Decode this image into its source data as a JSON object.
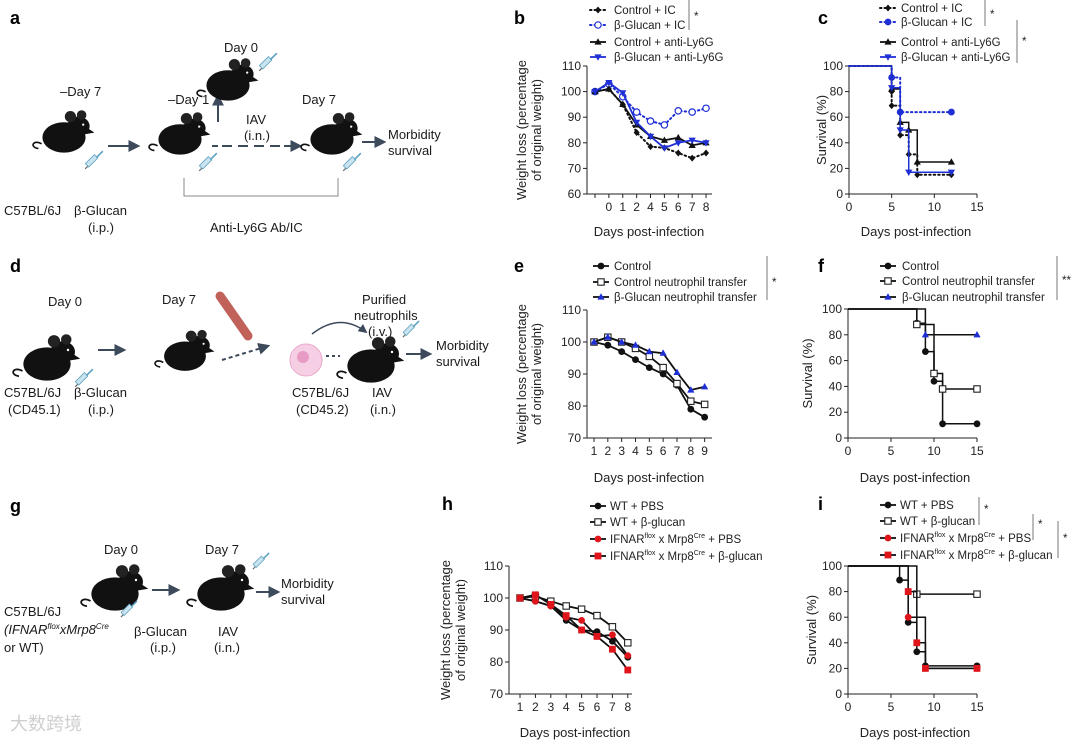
{
  "panel_letters": {
    "a": "a",
    "b": "b",
    "c": "c",
    "d": "d",
    "e": "e",
    "f": "f",
    "g": "g",
    "h": "h",
    "i": "i"
  },
  "watermark": "大数跨境",
  "colors": {
    "black": "#111111",
    "blue": "#1f2fd6",
    "red": "#e0141b",
    "arrow": "#3c4a5c",
    "bone": "#c0625a",
    "cell": "#f2b8d8"
  },
  "diagram_a": {
    "day_minus7": "–Day 7",
    "day_minus1": "–Day 1",
    "day0": "Day 0",
    "day7": "Day 7",
    "iav": "IAV",
    "iav_route": "(i.n.)",
    "strain": "C57BL/6J",
    "treatment": "β-Glucan",
    "treatment_route": "(i.p.)",
    "antibody": "Anti-Ly6G Ab/IC",
    "outcome_1": "Morbidity",
    "outcome_2": "survival"
  },
  "diagram_d": {
    "day0": "Day 0",
    "day7": "Day 7",
    "strain_1": "C57BL/6J",
    "strain_1_marker": "(CD45.1)",
    "treatment": "β-Glucan",
    "treatment_route": "(i.p.)",
    "transfer_1": "Purified",
    "transfer_2": "neutrophils",
    "transfer_route": "(i.v.)",
    "strain_2": "C57BL/6J",
    "strain_2_marker": "(CD45.2)",
    "iav": "IAV",
    "iav_route": "(i.n.)",
    "outcome_1": "Morbidity",
    "outcome_2": "survival"
  },
  "diagram_g": {
    "day0": "Day 0",
    "day7": "Day 7",
    "strain": "C57BL/6J",
    "genotype_open": "(IFNAR",
    "genotype_sup1": "flox",
    "genotype_mid": "xMrp8",
    "genotype_sup2": "Cre",
    "genotype_close": "or WT)",
    "treatment": "β-Glucan",
    "treatment_route": "(i.p.)",
    "iav": "IAV",
    "iav_route": "(i.n.)",
    "outcome_1": "Morbidity",
    "outcome_2": "survival"
  },
  "chart_data": [
    {
      "id": "b",
      "type": "line",
      "title": "",
      "xlabel": "Days post-infection",
      "ylabel": [
        "Weight loss (percentage",
        "of original weight)"
      ],
      "ylim": [
        60,
        110
      ],
      "yticks": [
        60,
        70,
        80,
        90,
        100,
        110
      ],
      "categories": [
        "",
        "0",
        "1",
        "2",
        "4",
        "5",
        "6",
        "7",
        "8"
      ],
      "series": [
        {
          "name": "Control + IC",
          "values": [
            100,
            101,
            95,
            84,
            78.5,
            78,
            76,
            74,
            76
          ],
          "marker": "diamond",
          "color": "#111111",
          "dash": true
        },
        {
          "name": "β-Glucan + IC",
          "values": [
            100,
            103,
            98,
            92,
            88.5,
            87,
            92.5,
            92,
            93.5
          ],
          "marker": "circle-open",
          "color": "#1f2fd6",
          "dash": true
        },
        {
          "name": "Control + anti-Ly6G",
          "values": [
            100,
            101,
            95,
            87,
            82.5,
            81,
            82,
            79,
            80
          ],
          "marker": "triangle",
          "color": "#111111",
          "dash": false
        },
        {
          "name": "β-Glucan + anti-Ly6G",
          "values": [
            100,
            103.5,
            99.5,
            88,
            82.5,
            78,
            80,
            81,
            80
          ],
          "marker": "tri-down",
          "color": "#1f2fd6",
          "dash": false
        }
      ],
      "significance": [
        {
          "label": "*",
          "groups": [
            0,
            1
          ]
        }
      ]
    },
    {
      "id": "c",
      "type": "line",
      "subtype": "survival-step",
      "xlabel": "Days post-infection",
      "ylabel": [
        "Survival (%)"
      ],
      "xlim": [
        0,
        15
      ],
      "xticks": [
        0,
        5,
        10,
        15
      ],
      "ylim": [
        0,
        100
      ],
      "yticks": [
        0,
        20,
        40,
        60,
        80,
        100
      ],
      "series": [
        {
          "name": "Control + IC",
          "points": [
            [
              0,
              100
            ],
            [
              5,
              80
            ],
            [
              5,
              69
            ],
            [
              6,
              46
            ],
            [
              7,
              31
            ],
            [
              8,
              15
            ],
            [
              12,
              15
            ]
          ],
          "marker": "diamond",
          "color": "#111111",
          "dash": true
        },
        {
          "name": "β-Glucan + IC",
          "points": [
            [
              0,
              100
            ],
            [
              5,
              91
            ],
            [
              6,
              64
            ],
            [
              12,
              64
            ]
          ],
          "marker": "circle",
          "color": "#1f2fd6",
          "dash": true
        },
        {
          "name": "Control + anti-Ly6G",
          "points": [
            [
              0,
              100
            ],
            [
              5,
              82
            ],
            [
              6,
              56
            ],
            [
              7,
              50
            ],
            [
              8,
              25
            ],
            [
              12,
              25
            ]
          ],
          "marker": "triangle",
          "color": "#111111",
          "dash": false
        },
        {
          "name": "β-Glucan + anti-Ly6G",
          "points": [
            [
              0,
              100
            ],
            [
              5,
              83
            ],
            [
              6,
              50
            ],
            [
              7,
              17
            ],
            [
              12,
              17
            ]
          ],
          "marker": "tri-down",
          "color": "#1f2fd6",
          "dash": false
        }
      ],
      "significance": [
        {
          "label": "*",
          "groups": [
            0,
            1
          ]
        },
        {
          "label": "*",
          "groups": [
            2,
            3
          ]
        }
      ]
    },
    {
      "id": "e",
      "type": "line",
      "xlabel": "Days post-infection",
      "ylabel": [
        "Weight loss (percentage",
        "of original weight)"
      ],
      "ylim": [
        70,
        110
      ],
      "yticks": [
        70,
        80,
        90,
        100,
        110
      ],
      "categories": [
        "1",
        "2",
        "3",
        "4",
        "5",
        "6",
        "7",
        "8",
        "9"
      ],
      "series": [
        {
          "name": "Control",
          "values": [
            100,
            99,
            97,
            94.5,
            92,
            90,
            86.5,
            79,
            76.5
          ],
          "marker": "circle",
          "color": "#111111",
          "dash": false
        },
        {
          "name": "Control neutrophil transfer",
          "values": [
            100,
            101.5,
            100,
            98,
            95.5,
            92,
            87,
            81.5,
            80.5
          ],
          "marker": "square-open",
          "color": "#111111",
          "dash": false
        },
        {
          "name": "β-Glucan neutrophil transfer",
          "values": [
            100,
            101.5,
            100,
            99,
            97,
            96.5,
            90.5,
            85,
            86
          ],
          "marker": "triangle",
          "color": "#1f2fd6",
          "dash": false,
          "line_color": "#111111"
        }
      ],
      "significance": [
        {
          "label": "*",
          "groups": [
            0,
            2
          ]
        }
      ]
    },
    {
      "id": "f",
      "type": "line",
      "subtype": "survival-step",
      "xlabel": "Days post-infection",
      "ylabel": [
        "Survival (%)"
      ],
      "xlim": [
        0,
        15
      ],
      "xticks": [
        0,
        5,
        10,
        15
      ],
      "ylim": [
        0,
        100
      ],
      "yticks": [
        0,
        20,
        40,
        60,
        80,
        100
      ],
      "series": [
        {
          "name": "Control",
          "points": [
            [
              0,
              100
            ],
            [
              8,
              89
            ],
            [
              9,
              67
            ],
            [
              10,
              44
            ],
            [
              11,
              11
            ],
            [
              15,
              11
            ]
          ],
          "marker": "circle",
          "color": "#111111",
          "dash": false
        },
        {
          "name": "Control neutrophil transfer",
          "points": [
            [
              0,
              100
            ],
            [
              8,
              88
            ],
            [
              10,
              50
            ],
            [
              11,
              38
            ],
            [
              15,
              38
            ]
          ],
          "marker": "square-open",
          "color": "#111111",
          "dash": false
        },
        {
          "name": "β-Glucan neutrophil transfer",
          "points": [
            [
              0,
              100
            ],
            [
              9,
              80
            ],
            [
              15,
              80
            ]
          ],
          "marker": "triangle",
          "color": "#1f2fd6",
          "dash": false,
          "line_color": "#111111"
        }
      ],
      "significance": [
        {
          "label": "**",
          "groups": [
            0,
            2
          ]
        }
      ]
    },
    {
      "id": "h",
      "type": "line",
      "xlabel": "Days post-infection",
      "ylabel": [
        "Weight loss (percentage",
        "of original weight)"
      ],
      "ylim": [
        70,
        110
      ],
      "yticks": [
        70,
        80,
        90,
        100,
        110
      ],
      "categories": [
        "1",
        "2",
        "3",
        "4",
        "5",
        "6",
        "7",
        "8"
      ],
      "series": [
        {
          "name_parts": [
            {
              "t": "WT + PBS"
            }
          ],
          "values": [
            100,
            99,
            97.5,
            93,
            90,
            89.5,
            86.5,
            81.5
          ],
          "marker": "circle",
          "color": "#111111",
          "dash": false
        },
        {
          "name_parts": [
            {
              "t": "WT + β-glucan"
            }
          ],
          "values": [
            100,
            100.5,
            99,
            97.5,
            96.5,
            94.5,
            91,
            86
          ],
          "marker": "square-open",
          "color": "#111111",
          "dash": false
        },
        {
          "name_parts": [
            {
              "t": "IFNAR"
            },
            {
              "t": "flox",
              "sup": true
            },
            {
              "t": " x Mrp8"
            },
            {
              "t": "Cre",
              "sup": true
            },
            {
              "t": " + PBS"
            }
          ],
          "values": [
            100,
            99,
            97.5,
            94,
            93,
            88,
            88.5,
            82
          ],
          "marker": "circle",
          "color": "#e0141b",
          "dash": false,
          "line_color": "#111111"
        },
        {
          "name_parts": [
            {
              "t": "IFNAR"
            },
            {
              "t": "flox",
              "sup": true
            },
            {
              "t": " x Mrp8"
            },
            {
              "t": "Cre",
              "sup": true
            },
            {
              "t": " + β-glucan"
            }
          ],
          "values": [
            100,
            101,
            98,
            94.5,
            90,
            88,
            84,
            77.5
          ],
          "marker": "square",
          "color": "#e0141b",
          "dash": false,
          "line_color": "#111111"
        }
      ],
      "significance": []
    },
    {
      "id": "i",
      "type": "line",
      "subtype": "survival-step",
      "xlabel": "Days post-infection",
      "ylabel": [
        "Survival (%)"
      ],
      "xlim": [
        0,
        15
      ],
      "xticks": [
        0,
        5,
        10,
        15
      ],
      "ylim": [
        0,
        100
      ],
      "yticks": [
        0,
        20,
        40,
        60,
        80,
        100
      ],
      "series": [
        {
          "name_parts": [
            {
              "t": "WT + PBS"
            }
          ],
          "points": [
            [
              0,
              100
            ],
            [
              6,
              89
            ],
            [
              7,
              56
            ],
            [
              8,
              33
            ],
            [
              9,
              22
            ],
            [
              15,
              22
            ]
          ],
          "marker": "circle",
          "color": "#111111",
          "dash": false
        },
        {
          "name_parts": [
            {
              "t": "WT + β-glucan"
            }
          ],
          "points": [
            [
              0,
              100
            ],
            [
              8,
              78
            ],
            [
              15,
              78
            ]
          ],
          "marker": "square-open",
          "color": "#111111",
          "dash": false
        },
        {
          "name_parts": [
            {
              "t": "IFNAR"
            },
            {
              "t": "flox",
              "sup": true
            },
            {
              "t": " x Mrp8"
            },
            {
              "t": "Cre",
              "sup": true
            },
            {
              "t": " + PBS"
            }
          ],
          "points": [
            [
              0,
              100
            ],
            [
              7,
              60
            ],
            [
              9,
              20
            ],
            [
              15,
              20
            ]
          ],
          "marker": "circle",
          "color": "#e0141b",
          "dash": false,
          "line_color": "#111111"
        },
        {
          "name_parts": [
            {
              "t": "IFNAR"
            },
            {
              "t": "flox",
              "sup": true
            },
            {
              "t": " x Mrp8"
            },
            {
              "t": "Cre",
              "sup": true
            },
            {
              "t": " + β-glucan"
            }
          ],
          "points": [
            [
              0,
              100
            ],
            [
              7,
              80
            ],
            [
              8,
              40
            ],
            [
              9,
              20
            ],
            [
              15,
              20
            ]
          ],
          "marker": "square",
          "color": "#e0141b",
          "dash": false,
          "line_color": "#111111"
        }
      ],
      "significance": [
        {
          "label": "*",
          "groups": [
            0,
            1
          ]
        },
        {
          "label": "*",
          "groups": [
            1,
            2
          ]
        },
        {
          "label": "*",
          "groups": [
            2,
            3
          ]
        }
      ]
    }
  ]
}
